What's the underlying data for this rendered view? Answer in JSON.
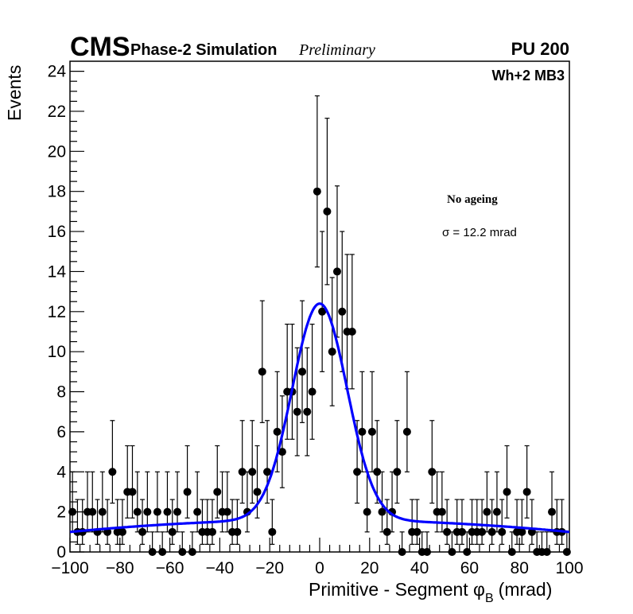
{
  "chart_data": {
    "type": "scatter",
    "title": {
      "experiment": "CMS",
      "subtitle": "Phase-2 Simulation",
      "status": "Preliminary",
      "pileup": "PU 200",
      "chamber": "Wh+2 MB3"
    },
    "annotations": {
      "condition": "No ageing",
      "sigma": "σ = 12.2 mrad"
    },
    "xlabel": "Primitive - Segment φ",
    "xlabel_sub": "B",
    "xlabel_unit": "(mrad)",
    "ylabel": "Events",
    "xlim": [
      -100,
      100
    ],
    "ylim": [
      0,
      24.5
    ],
    "xticks": [
      "−100",
      "−80",
      "−60",
      "−40",
      "−20",
      "0",
      "20",
      "40",
      "60",
      "80",
      "100"
    ],
    "yticks": [
      "0",
      "2",
      "4",
      "6",
      "8",
      "10",
      "12",
      "14",
      "16",
      "18",
      "20",
      "22",
      "24"
    ],
    "bin_width": 2,
    "series": [
      {
        "name": "data",
        "marker_color": "#000000",
        "values": [
          2,
          1,
          1,
          2,
          2,
          1,
          2,
          1,
          4,
          1,
          1,
          3,
          3,
          2,
          1,
          2,
          0,
          2,
          0,
          2,
          1,
          2,
          0,
          3,
          0,
          2,
          1,
          1,
          1,
          3,
          2,
          2,
          1,
          1,
          4,
          2,
          4,
          3,
          9,
          4,
          1,
          6,
          5,
          8,
          8,
          7,
          9,
          7,
          8,
          18,
          12,
          17,
          10,
          14,
          12,
          11,
          11,
          4,
          6,
          2,
          6,
          4,
          2,
          1,
          2,
          4,
          0,
          6,
          1,
          1,
          0,
          0,
          4,
          2,
          2,
          1,
          0,
          1,
          1,
          0,
          1,
          1,
          1,
          2,
          1,
          2,
          1,
          3,
          0,
          1,
          1,
          3,
          1,
          0,
          0,
          0,
          2,
          1,
          1,
          0
        ]
      }
    ],
    "fit": {
      "name": "fit",
      "color": "#0000ff",
      "gauss_amplitude": 10.8,
      "gauss_mean": 0,
      "gauss_sigma": 11,
      "background_const": 1.6,
      "background_quad": -6e-05
    }
  }
}
